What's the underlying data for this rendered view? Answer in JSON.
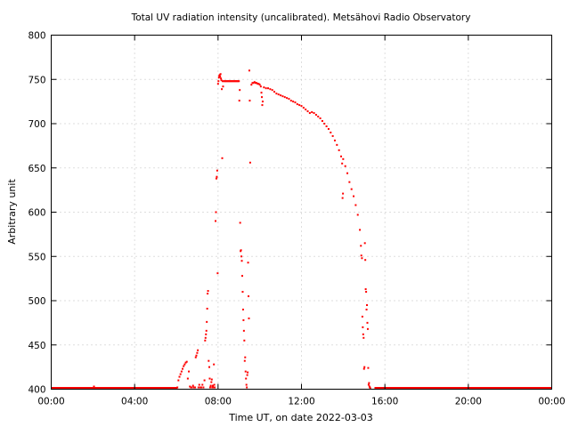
{
  "chart_data": {
    "type": "scatter",
    "title": "Total UV radiation intensity (uncalibrated). Metsähovi Radio Observatory",
    "xlabel": "Time UT, on date 2022-03-03",
    "ylabel": "Arbitrary unit",
    "xlim": [
      0,
      24
    ],
    "ylim": [
      400,
      800
    ],
    "grid": true,
    "legend": "none",
    "color": "#ff0000",
    "x_ticks": [
      {
        "value": 0,
        "label": "00:00"
      },
      {
        "value": 4,
        "label": "04:00"
      },
      {
        "value": 8,
        "label": "08:00"
      },
      {
        "value": 12,
        "label": "12:00"
      },
      {
        "value": 16,
        "label": "16:00"
      },
      {
        "value": 20,
        "label": "20:00"
      },
      {
        "value": 24,
        "label": "00:00"
      }
    ],
    "y_ticks": [
      {
        "value": 400,
        "label": "400"
      },
      {
        "value": 450,
        "label": "450"
      },
      {
        "value": 500,
        "label": "500"
      },
      {
        "value": 550,
        "label": "550"
      },
      {
        "value": 600,
        "label": "600"
      },
      {
        "value": 650,
        "label": "650"
      },
      {
        "value": 700,
        "label": "700"
      },
      {
        "value": 750,
        "label": "750"
      },
      {
        "value": 800,
        "label": "800"
      }
    ],
    "baseline_segments": [
      {
        "x_start": 0.0,
        "x_end": 6.05,
        "y": 401
      },
      {
        "x_start": 15.5,
        "x_end": 24.0,
        "y": 401
      }
    ],
    "points": [
      [
        2.05,
        403
      ],
      [
        6.05,
        402
      ],
      [
        6.1,
        410
      ],
      [
        6.15,
        414
      ],
      [
        6.2,
        417
      ],
      [
        6.25,
        420
      ],
      [
        6.3,
        423
      ],
      [
        6.35,
        426
      ],
      [
        6.4,
        428
      ],
      [
        6.45,
        430
      ],
      [
        6.5,
        431
      ],
      [
        6.55,
        412
      ],
      [
        6.6,
        420
      ],
      [
        6.65,
        403
      ],
      [
        6.7,
        402
      ],
      [
        6.75,
        402
      ],
      [
        6.8,
        404
      ],
      [
        6.85,
        402
      ],
      [
        6.9,
        402
      ],
      [
        6.93,
        436
      ],
      [
        6.96,
        438
      ],
      [
        7.0,
        441
      ],
      [
        7.03,
        444
      ],
      [
        7.06,
        402
      ],
      [
        7.1,
        405
      ],
      [
        7.15,
        402
      ],
      [
        7.2,
        402
      ],
      [
        7.25,
        405
      ],
      [
        7.3,
        402
      ],
      [
        7.35,
        410
      ],
      [
        7.38,
        455
      ],
      [
        7.4,
        458
      ],
      [
        7.42,
        462
      ],
      [
        7.44,
        466
      ],
      [
        7.46,
        476
      ],
      [
        7.48,
        491
      ],
      [
        7.5,
        508
      ],
      [
        7.52,
        511
      ],
      [
        7.55,
        432
      ],
      [
        7.58,
        425
      ],
      [
        7.6,
        412
      ],
      [
        7.62,
        402
      ],
      [
        7.65,
        404
      ],
      [
        7.68,
        408
      ],
      [
        7.7,
        411
      ],
      [
        7.72,
        402
      ],
      [
        7.75,
        404
      ],
      [
        7.78,
        402
      ],
      [
        7.8,
        428
      ],
      [
        7.82,
        405
      ],
      [
        7.84,
        402
      ],
      [
        7.88,
        590
      ],
      [
        7.9,
        600
      ],
      [
        7.92,
        638
      ],
      [
        7.94,
        640
      ],
      [
        7.96,
        647
      ],
      [
        7.98,
        531
      ],
      [
        8.0,
        745
      ],
      [
        8.02,
        748
      ],
      [
        8.04,
        752
      ],
      [
        8.06,
        754
      ],
      [
        8.08,
        755
      ],
      [
        8.1,
        753
      ],
      [
        8.12,
        756
      ],
      [
        8.14,
        751
      ],
      [
        8.16,
        749
      ],
      [
        8.18,
        739
      ],
      [
        8.2,
        661
      ],
      [
        8.22,
        748
      ],
      [
        8.24,
        742
      ],
      [
        8.28,
        748
      ],
      [
        8.32,
        748
      ],
      [
        8.36,
        748
      ],
      [
        8.4,
        748
      ],
      [
        8.44,
        748
      ],
      [
        8.48,
        748
      ],
      [
        8.52,
        748
      ],
      [
        8.56,
        748
      ],
      [
        8.6,
        748
      ],
      [
        8.64,
        748
      ],
      [
        8.68,
        748
      ],
      [
        8.72,
        748
      ],
      [
        8.76,
        748
      ],
      [
        8.8,
        748
      ],
      [
        8.84,
        748
      ],
      [
        8.88,
        748
      ],
      [
        8.92,
        748
      ],
      [
        8.96,
        748
      ],
      [
        9.0,
        748
      ],
      [
        9.02,
        726
      ],
      [
        9.04,
        738
      ],
      [
        9.06,
        588
      ],
      [
        9.08,
        556
      ],
      [
        9.1,
        557
      ],
      [
        9.12,
        550
      ],
      [
        9.14,
        545
      ],
      [
        9.16,
        528
      ],
      [
        9.18,
        510
      ],
      [
        9.2,
        490
      ],
      [
        9.22,
        478
      ],
      [
        9.24,
        466
      ],
      [
        9.26,
        455
      ],
      [
        9.28,
        432
      ],
      [
        9.3,
        436
      ],
      [
        9.32,
        420
      ],
      [
        9.34,
        412
      ],
      [
        9.36,
        405
      ],
      [
        9.38,
        402
      ],
      [
        9.4,
        416
      ],
      [
        9.42,
        419
      ],
      [
        9.44,
        543
      ],
      [
        9.46,
        505
      ],
      [
        9.48,
        480
      ],
      [
        9.5,
        760
      ],
      [
        9.52,
        726
      ],
      [
        9.54,
        656
      ],
      [
        9.6,
        744
      ],
      [
        9.65,
        746
      ],
      [
        9.7,
        746
      ],
      [
        9.75,
        747
      ],
      [
        9.8,
        746
      ],
      [
        9.85,
        746
      ],
      [
        9.9,
        745
      ],
      [
        9.95,
        745
      ],
      [
        10.0,
        744
      ],
      [
        10.05,
        742
      ],
      [
        10.08,
        735
      ],
      [
        10.1,
        730
      ],
      [
        10.12,
        721
      ],
      [
        10.14,
        725
      ],
      [
        10.2,
        741
      ],
      [
        10.3,
        740
      ],
      [
        10.4,
        740
      ],
      [
        10.5,
        739
      ],
      [
        10.6,
        738
      ],
      [
        10.7,
        736
      ],
      [
        10.8,
        734
      ],
      [
        10.9,
        733
      ],
      [
        11.0,
        732
      ],
      [
        11.1,
        731
      ],
      [
        11.2,
        730
      ],
      [
        11.3,
        729
      ],
      [
        11.4,
        728
      ],
      [
        11.5,
        726
      ],
      [
        11.6,
        725
      ],
      [
        11.7,
        724
      ],
      [
        11.8,
        722
      ],
      [
        11.9,
        721
      ],
      [
        12.0,
        720
      ],
      [
        12.1,
        718
      ],
      [
        12.2,
        716
      ],
      [
        12.3,
        714
      ],
      [
        12.4,
        712
      ],
      [
        12.5,
        713
      ],
      [
        12.6,
        712
      ],
      [
        12.7,
        710
      ],
      [
        12.8,
        708
      ],
      [
        12.9,
        706
      ],
      [
        13.0,
        703
      ],
      [
        13.1,
        700
      ],
      [
        13.2,
        697
      ],
      [
        13.3,
        694
      ],
      [
        13.4,
        690
      ],
      [
        13.5,
        686
      ],
      [
        13.6,
        681
      ],
      [
        13.7,
        676
      ],
      [
        13.8,
        670
      ],
      [
        13.9,
        663
      ],
      [
        13.95,
        655
      ],
      [
        13.97,
        616
      ],
      [
        13.99,
        621
      ],
      [
        14.0,
        660
      ],
      [
        14.1,
        652
      ],
      [
        14.2,
        644
      ],
      [
        14.3,
        634
      ],
      [
        14.4,
        626
      ],
      [
        14.5,
        618
      ],
      [
        14.6,
        608
      ],
      [
        14.7,
        597
      ],
      [
        14.8,
        580
      ],
      [
        14.85,
        562
      ],
      [
        14.87,
        551
      ],
      [
        14.9,
        548
      ],
      [
        14.92,
        482
      ],
      [
        14.94,
        470
      ],
      [
        14.96,
        462
      ],
      [
        14.98,
        458
      ],
      [
        15.0,
        423
      ],
      [
        15.02,
        425
      ],
      [
        15.04,
        565
      ],
      [
        15.06,
        546
      ],
      [
        15.08,
        513
      ],
      [
        15.1,
        510
      ],
      [
        15.12,
        490
      ],
      [
        15.14,
        495
      ],
      [
        15.16,
        475
      ],
      [
        15.18,
        468
      ],
      [
        15.2,
        424
      ],
      [
        15.22,
        405
      ],
      [
        15.24,
        407
      ],
      [
        15.26,
        403
      ],
      [
        15.28,
        402
      ],
      [
        15.3,
        401
      ]
    ]
  }
}
